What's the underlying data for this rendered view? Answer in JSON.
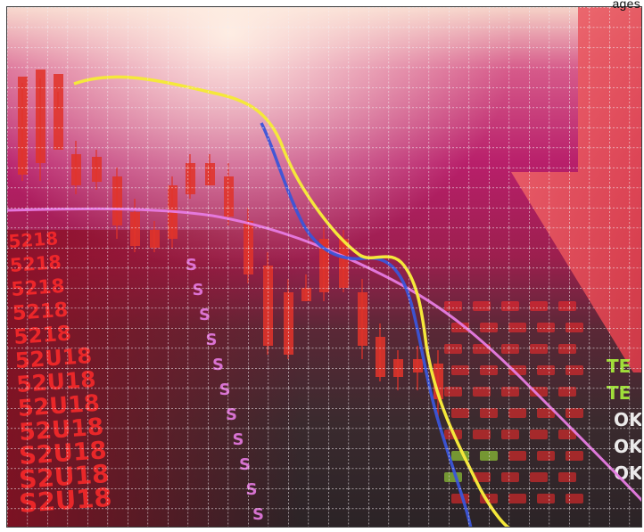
{
  "image": {
    "subject": "stock-market-crash-photo",
    "credit_text": "ages",
    "colors": {
      "sky_top": "#f6d3c8",
      "magenta": "#b81f6a",
      "deep_red": "#8c1030",
      "dark_floor": "#2b2326",
      "grid_line": "#f2eef2",
      "candle": "#e0332a",
      "yellow_line": "#f5e83a",
      "blue_line": "#3b55d8",
      "pink_line": "#e77be3",
      "arrow": "#e8454f",
      "ticker_red": "#ff2a2a",
      "ticker_green": "#a9f23a",
      "ticker_white": "#ffffff"
    },
    "ticker_texts": [
      "5218",
      "5218",
      "5218",
      "5218",
      "5218",
      "52U18",
      "52U18",
      "52U18",
      "52U18",
      "S2U18",
      "S2U18",
      "S2U18"
    ],
    "s_chars": [
      "S",
      "S",
      "S",
      "S",
      "S",
      "S",
      "S",
      "S",
      "S",
      "S",
      "S"
    ],
    "right_ticker": [
      "TE",
      "TE",
      "OK",
      "OK",
      "OK"
    ]
  }
}
